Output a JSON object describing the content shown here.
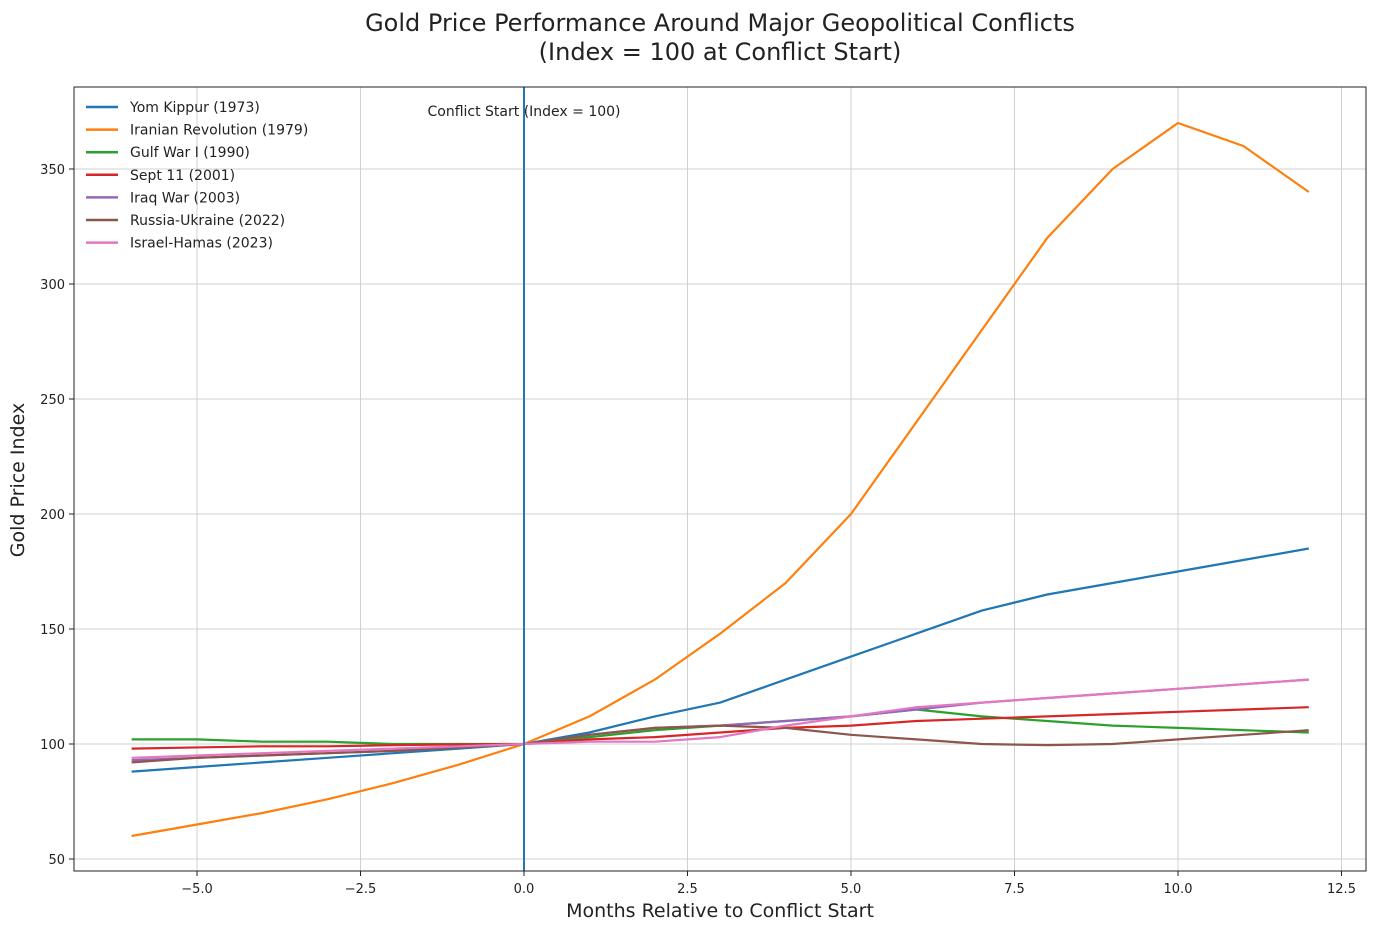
{
  "chart_data": {
    "type": "line",
    "title": "Gold Price Performance Around Major Geopolitical Conflicts",
    "subtitle": "(Index = 100 at Conflict Start)",
    "xlabel": "Months Relative to Conflict Start",
    "ylabel": "Gold Price Index",
    "xlim": [
      -6.9,
      12.9
    ],
    "ylim": [
      47,
      385
    ],
    "xticks": [
      -5.0,
      -2.5,
      0.0,
      2.5,
      5.0,
      7.5,
      10.0,
      12.5
    ],
    "xtick_labels": [
      "−5.0",
      "−2.5",
      "0.0",
      "2.5",
      "5.0",
      "7.5",
      "10.0",
      "12.5"
    ],
    "yticks": [
      50,
      100,
      150,
      200,
      250,
      300,
      350
    ],
    "ytick_labels": [
      "50",
      "100",
      "150",
      "200",
      "250",
      "300",
      "350"
    ],
    "grid": true,
    "legend_position": "top-left",
    "annotation": {
      "x": 0,
      "text": "Conflict Start (Index = 100)",
      "color": "#1f77b4"
    },
    "x": [
      -6,
      -5,
      -4,
      -3,
      -2,
      -1,
      0,
      1,
      2,
      3,
      4,
      5,
      6,
      7,
      8,
      9,
      10,
      11,
      12
    ],
    "series": [
      {
        "name": "Yom Kippur (1973)",
        "color": "#1f77b4",
        "values": [
          88,
          90,
          92,
          94,
          96,
          98,
          100,
          105,
          112,
          118,
          128,
          138,
          148,
          158,
          165,
          170,
          175,
          180,
          185
        ]
      },
      {
        "name": "Iranian Revolution (1979)",
        "color": "#ff7f0e",
        "values": [
          60,
          65,
          70,
          76,
          83,
          91,
          100,
          112,
          128,
          148,
          170,
          200,
          240,
          280,
          320,
          350,
          370,
          360,
          340
        ]
      },
      {
        "name": "Gulf War I (1990)",
        "color": "#2ca02c",
        "values": [
          102,
          102,
          101,
          101,
          100,
          100,
          100,
          103,
          106,
          108,
          110,
          112,
          115,
          112,
          110,
          108,
          107,
          106,
          105
        ]
      },
      {
        "name": "Sept 11 (2001)",
        "color": "#d62728",
        "values": [
          98,
          98.5,
          99,
          99,
          99.5,
          99.8,
          100,
          102,
          103,
          105,
          107,
          108,
          110,
          111,
          112,
          113,
          114,
          115,
          116
        ]
      },
      {
        "name": "Iraq War (2003)",
        "color": "#9467bd",
        "values": [
          93,
          94,
          95,
          96,
          97,
          98.5,
          100,
          104,
          107,
          108,
          110,
          112,
          115,
          118,
          120,
          122,
          124,
          126,
          128
        ]
      },
      {
        "name": "Russia-Ukraine (2022)",
        "color": "#8c564b",
        "values": [
          92,
          94,
          95,
          96,
          97,
          98.5,
          100,
          104,
          107,
          108,
          107,
          104,
          102,
          100,
          99.5,
          100,
          102,
          104,
          106
        ]
      },
      {
        "name": "Israel-Hamas (2023)",
        "color": "#e377c2",
        "values": [
          94,
          95,
          96,
          97,
          98,
          99,
          100,
          101,
          101,
          103,
          108,
          112,
          116,
          118,
          120,
          122,
          124,
          126,
          128
        ]
      }
    ]
  }
}
